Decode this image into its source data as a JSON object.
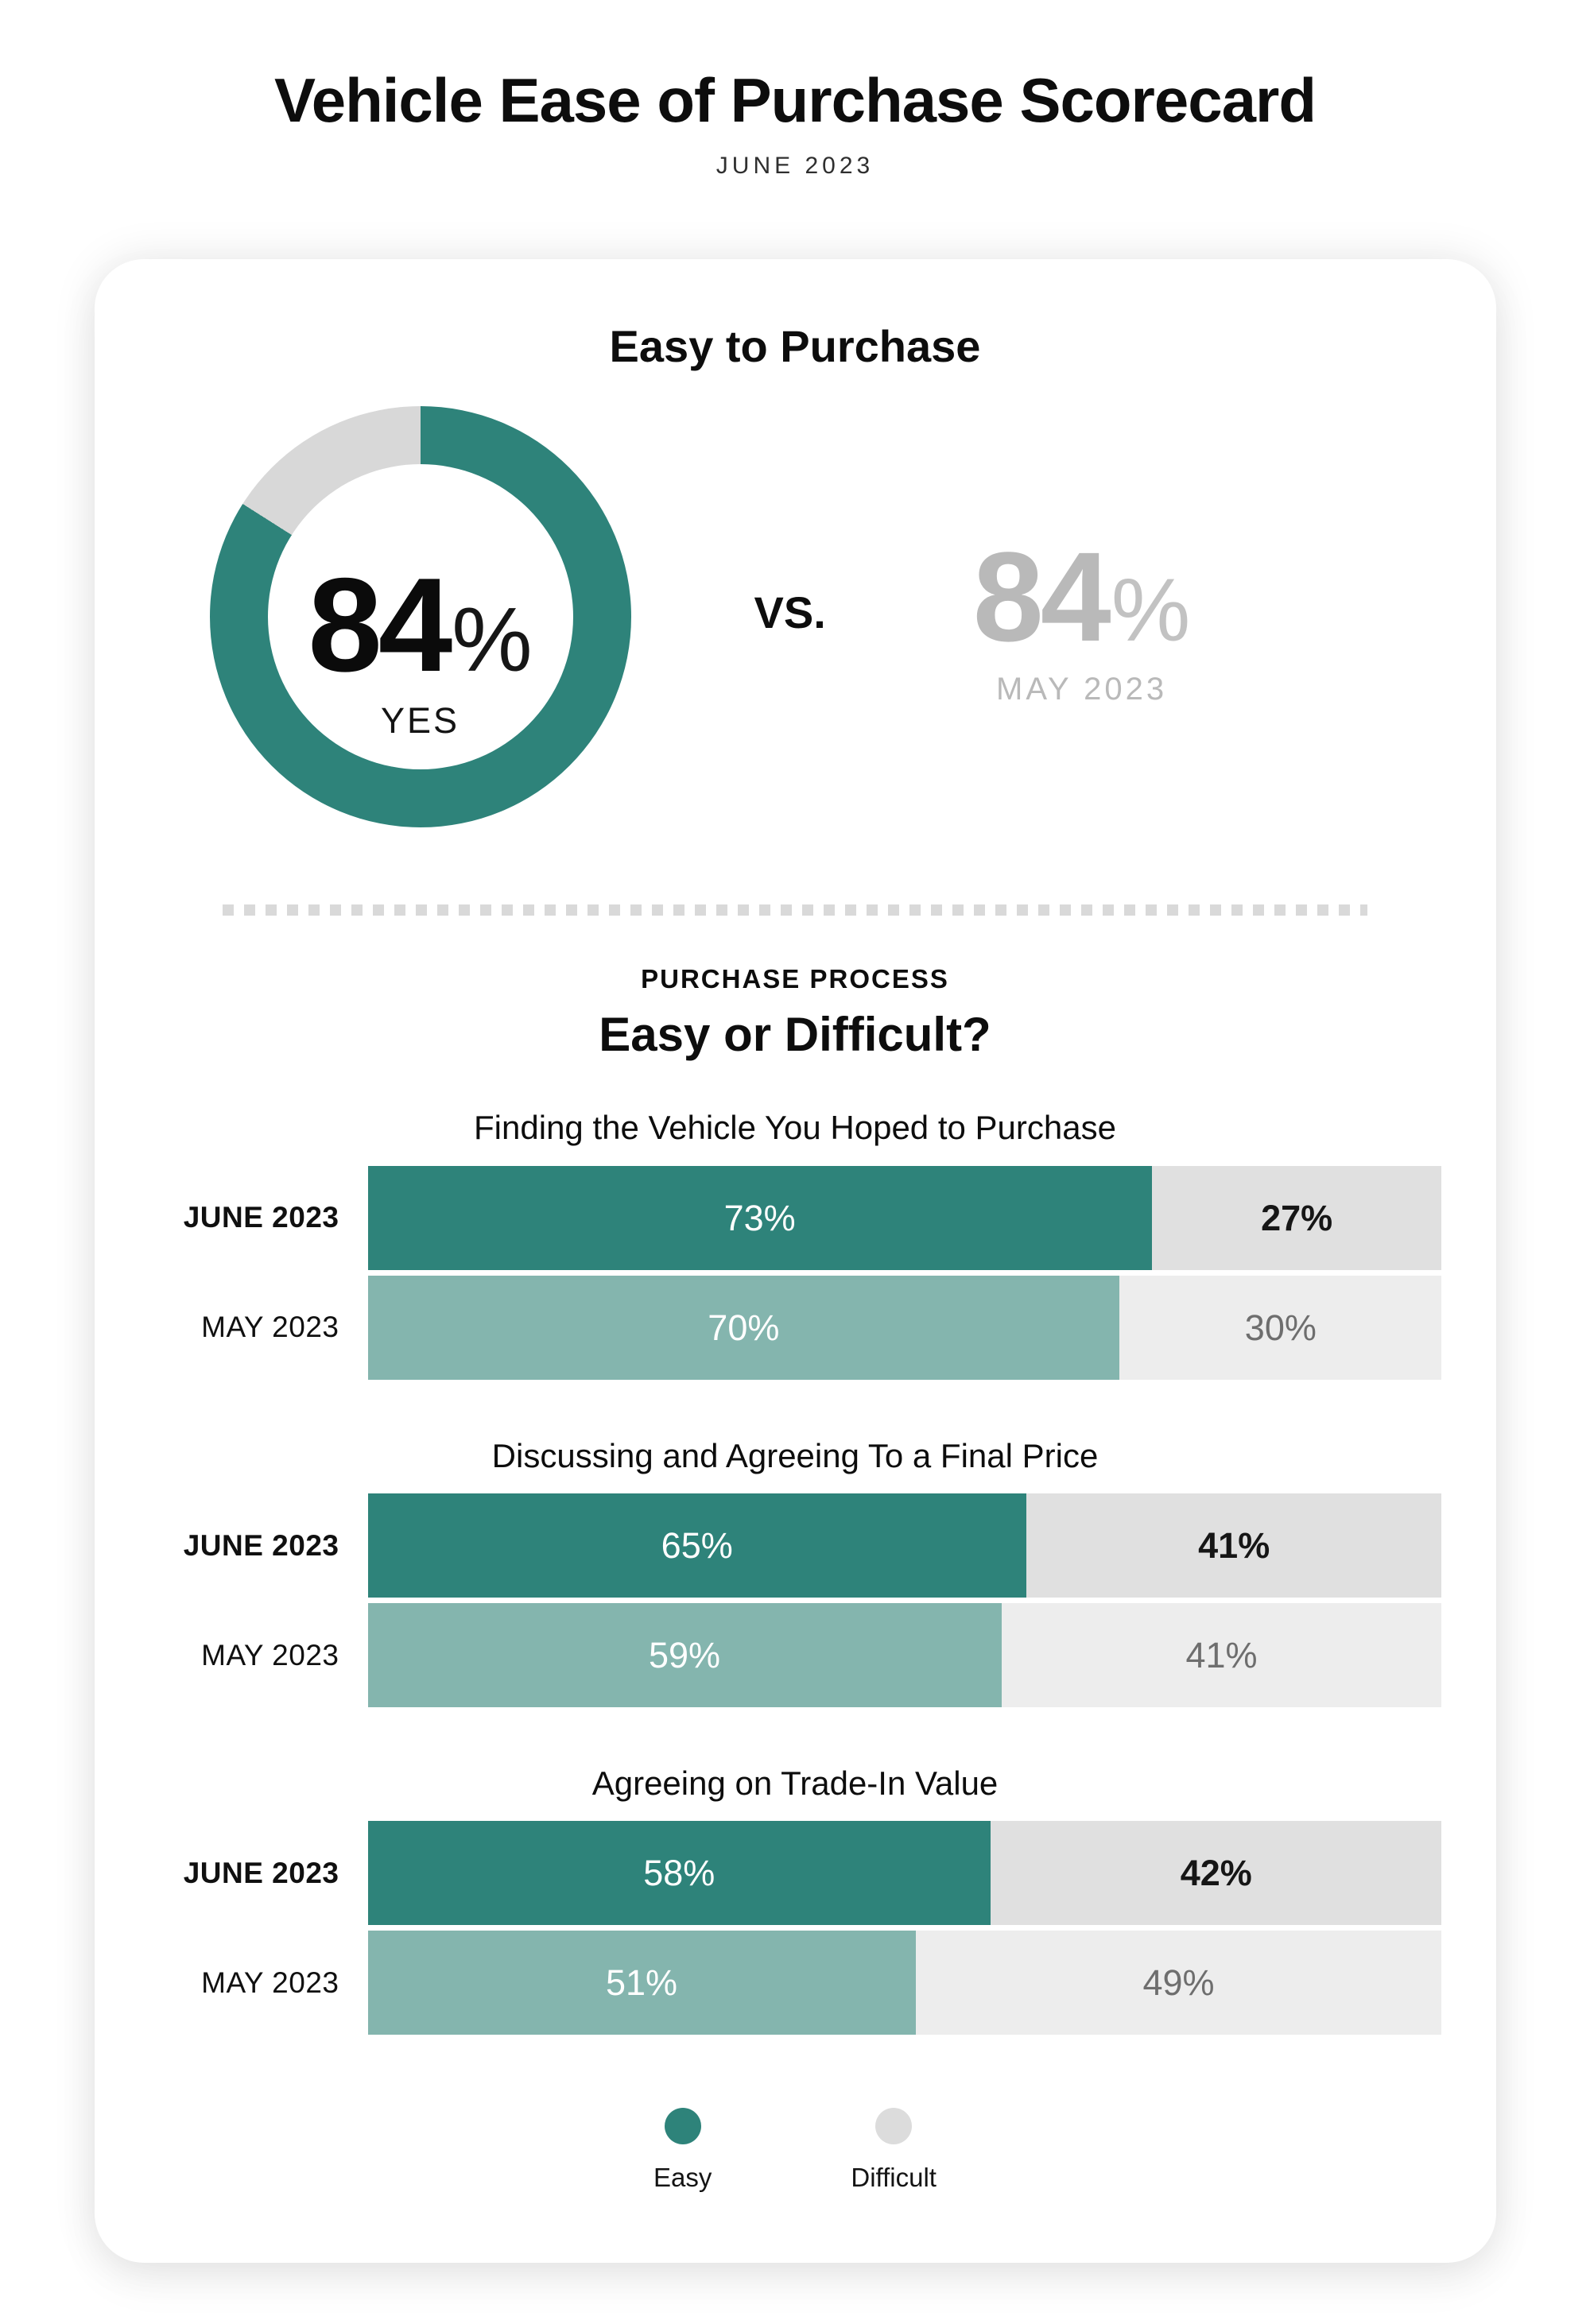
{
  "header": {
    "title": "Vehicle Ease of Purchase Scorecard",
    "subtitle": "JUNE 2023"
  },
  "card": {
    "heading": "Easy to Purchase",
    "donut": {
      "value": 84,
      "value_label": "84",
      "percent_sign": "%",
      "caption": "YES"
    },
    "vs_label": "VS.",
    "comparison": {
      "value": 84,
      "value_label": "84",
      "percent_sign": "%",
      "caption": "MAY 2023"
    },
    "section": {
      "kicker": "PURCHASE PROCESS",
      "title": "Easy or Difficult?"
    },
    "groups": [
      {
        "title": "Finding the Vehicle You Hoped to Purchase",
        "rows": [
          {
            "label": "JUNE 2023",
            "variant": "june",
            "easy": 73,
            "difficult": 27,
            "easy_label": "73%",
            "difficult_label": "27%"
          },
          {
            "label": "MAY 2023",
            "variant": "may",
            "easy": 70,
            "difficult": 30,
            "easy_label": "70%",
            "difficult_label": "30%"
          }
        ]
      },
      {
        "title": "Discussing and Agreeing To a Final Price",
        "rows": [
          {
            "label": "JUNE 2023",
            "variant": "june",
            "easy": 65,
            "difficult": 41,
            "easy_label": "65%",
            "difficult_label": "41%"
          },
          {
            "label": "MAY 2023",
            "variant": "may",
            "easy": 59,
            "difficult": 41,
            "easy_label": "59%",
            "difficult_label": "41%"
          }
        ]
      },
      {
        "title": "Agreeing on Trade-In Value",
        "rows": [
          {
            "label": "JUNE 2023",
            "variant": "june",
            "easy": 58,
            "difficult": 42,
            "easy_label": "58%",
            "difficult_label": "42%"
          },
          {
            "label": "MAY 2023",
            "variant": "may",
            "easy": 51,
            "difficult": 49,
            "easy_label": "51%",
            "difficult_label": "49%"
          }
        ]
      }
    ],
    "legend": [
      {
        "label": "Easy",
        "swatch": "easy"
      },
      {
        "label": "Difficult",
        "swatch": "difficult"
      }
    ]
  },
  "colors": {
    "teal": "#2E837A",
    "teal_light": "#84B5AE",
    "gray_june": "#E0E0E0",
    "gray_may": "#EDEDED",
    "donut_gray": "#D8D8D8",
    "legend_gray": "#DCDCDC",
    "muted_text": "#B9B9B9"
  },
  "chart_data": [
    {
      "type": "pie",
      "title": "Easy to Purchase",
      "labels": [
        "YES",
        "Remainder"
      ],
      "values": [
        84,
        16
      ],
      "center_label": "84% YES",
      "comparison": {
        "label": "MAY 2023",
        "value": 84,
        "vs_label": "VS."
      },
      "colors": [
        "#2E837A",
        "#D8D8D8"
      ],
      "layout": "donut, starts at 12 o'clock, clockwise"
    },
    {
      "type": "bar",
      "title": "Finding the Vehicle You Hoped to Purchase",
      "categories": [
        "JUNE 2023",
        "MAY 2023"
      ],
      "series": [
        {
          "name": "Easy",
          "values": [
            73,
            70
          ]
        },
        {
          "name": "Difficult",
          "values": [
            27,
            30
          ]
        }
      ],
      "layout": "horizontal stacked, widths normalized to Easy+Difficult sum, data labels inside segments"
    },
    {
      "type": "bar",
      "title": "Discussing and Agreeing To a Final Price",
      "categories": [
        "JUNE 2023",
        "MAY 2023"
      ],
      "series": [
        {
          "name": "Easy",
          "values": [
            65,
            59
          ]
        },
        {
          "name": "Difficult",
          "values": [
            41,
            41
          ]
        }
      ],
      "layout": "horizontal stacked, widths normalized to Easy+Difficult sum, data labels inside segments"
    },
    {
      "type": "bar",
      "title": "Agreeing on Trade-In Value",
      "categories": [
        "JUNE 2023",
        "MAY 2023"
      ],
      "series": [
        {
          "name": "Easy",
          "values": [
            58,
            51
          ]
        },
        {
          "name": "Difficult",
          "values": [
            42,
            49
          ]
        }
      ],
      "layout": "horizontal stacked, widths normalized to Easy+Difficult sum, data labels inside segments"
    }
  ]
}
